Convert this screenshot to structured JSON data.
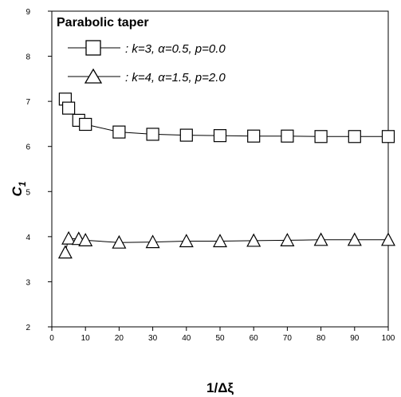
{
  "chart_data": {
    "type": "line",
    "title": "",
    "xlabel": "1/Δξ",
    "ylabel": "C",
    "ylabel_sub": "1",
    "xlim": [
      0,
      100
    ],
    "ylim": [
      2,
      9
    ],
    "xticks": [
      0,
      10,
      20,
      30,
      40,
      50,
      60,
      70,
      80,
      90,
      100
    ],
    "yticks": [
      2,
      3,
      4,
      5,
      6,
      7,
      8,
      9
    ],
    "grid": false,
    "legend": {
      "title": "Parabolic taper",
      "placement": "top-left",
      "entries": [
        ": k=3, α=0.5, p=0.0",
        ": k=4, α=1.5, p=2.0"
      ]
    },
    "series": [
      {
        "name": ": k=3, α=0.5, p=0.0",
        "marker": "square",
        "x": [
          4,
          5,
          8,
          10,
          20,
          30,
          40,
          50,
          60,
          70,
          80,
          90,
          100
        ],
        "y": [
          7.05,
          6.85,
          6.58,
          6.49,
          6.32,
          6.27,
          6.25,
          6.24,
          6.23,
          6.23,
          6.22,
          6.22,
          6.22
        ]
      },
      {
        "name": ": k=4, α=1.5, p=2.0",
        "marker": "triangle",
        "x": [
          4,
          5,
          8,
          10,
          20,
          30,
          40,
          50,
          60,
          70,
          80,
          90,
          100
        ],
        "y": [
          3.65,
          3.96,
          3.95,
          3.92,
          3.87,
          3.88,
          3.9,
          3.9,
          3.91,
          3.92,
          3.93,
          3.93,
          3.93
        ]
      }
    ]
  }
}
